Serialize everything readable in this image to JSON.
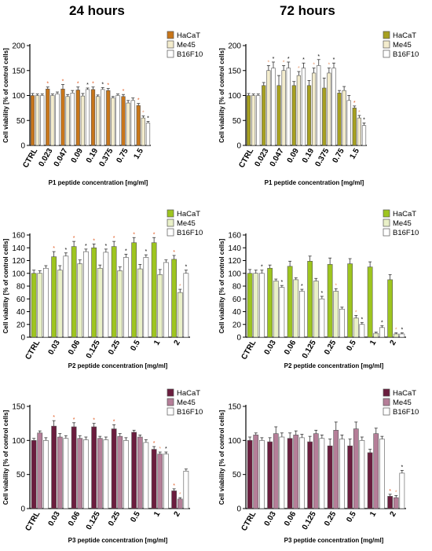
{
  "column_titles": {
    "left": "24 hours",
    "right": "72 hours"
  },
  "chart_data": [
    {
      "type": "bar",
      "panel": "P1 24 hours",
      "ylabel": "Cell viability [% of control cells]",
      "xlabel": "P1 peptide concentration [mg/ml]",
      "ylim": [
        0,
        200
      ],
      "yticks": [
        0,
        50,
        100,
        150,
        200
      ],
      "categories": [
        "CTRL",
        "0.023",
        "0.047",
        "0.09",
        "0.19",
        "0.375",
        "0.75",
        "1.5"
      ],
      "legend_position": "top-right",
      "series": [
        {
          "name": "HaCaT",
          "color": "#c8761a",
          "values": [
            100,
            113,
            113,
            111,
            112,
            110,
            98,
            80
          ],
          "err": [
            4,
            4,
            9,
            6,
            5,
            4,
            4,
            4
          ],
          "stars": [
            "",
            "*",
            "*",
            "*",
            "*",
            "*",
            "*",
            "*"
          ]
        },
        {
          "name": "Me45",
          "color": "#f3eccd",
          "values": [
            100,
            100,
            98,
            99,
            98,
            95,
            85,
            55
          ],
          "err": [
            3,
            3,
            4,
            5,
            3,
            3,
            5,
            4
          ],
          "stars": [
            "",
            "",
            "",
            "",
            "",
            "",
            "",
            "*"
          ]
        },
        {
          "name": "B16F10",
          "color": "#ffffff",
          "values": [
            100,
            103,
            105,
            112,
            112,
            100,
            90,
            45
          ],
          "err": [
            3,
            4,
            5,
            3,
            4,
            3,
            5,
            3
          ],
          "stars": [
            "",
            "",
            "",
            "*",
            "*",
            "",
            "",
            "*"
          ]
        }
      ]
    },
    {
      "type": "bar",
      "panel": "P1 72 hours",
      "ylabel": "Cell viability [% of control cells]",
      "xlabel": "P1 peptide concentration [mg/ml]",
      "ylim": [
        0,
        200
      ],
      "yticks": [
        0,
        50,
        100,
        150,
        200
      ],
      "categories": [
        "CTRL",
        "0.023",
        "0.047",
        "0.09",
        "0.19",
        "0.375",
        "0.75",
        "1.5"
      ],
      "legend_position": "top-right",
      "series": [
        {
          "name": "HaCaT",
          "color": "#a7a020",
          "values": [
            100,
            120,
            120,
            120,
            120,
            115,
            105,
            75
          ],
          "err": [
            4,
            6,
            20,
            8,
            10,
            20,
            5,
            4
          ],
          "stars": [
            "",
            "",
            "",
            "",
            "",
            "",
            "",
            "*"
          ]
        },
        {
          "name": "Me45",
          "color": "#f3eccd",
          "values": [
            100,
            150,
            150,
            140,
            145,
            145,
            110,
            55
          ],
          "err": [
            3,
            10,
            10,
            8,
            10,
            10,
            8,
            5
          ],
          "stars": [
            "",
            "*",
            "*",
            "*",
            "*",
            "*",
            "",
            "*"
          ]
        },
        {
          "name": "B16F10",
          "color": "#ffffff",
          "values": [
            100,
            155,
            155,
            155,
            160,
            155,
            90,
            40
          ],
          "err": [
            3,
            12,
            12,
            10,
            12,
            10,
            10,
            5
          ],
          "stars": [
            "",
            "*",
            "*",
            "*",
            "*",
            "*",
            "",
            "*"
          ]
        }
      ]
    },
    {
      "type": "bar",
      "panel": "P2 24 hours",
      "ylabel": "Cell viability [% of control cells]",
      "xlabel": "P2 peptide concentration [mg/ml]",
      "ylim": [
        0,
        160
      ],
      "yticks": [
        0,
        20,
        40,
        60,
        80,
        100,
        120,
        140,
        160
      ],
      "categories": [
        "CTRL",
        "0.03",
        "0.06",
        "0.125",
        "0.25",
        "0.5",
        "1",
        "2"
      ],
      "legend_position": "top-right",
      "series": [
        {
          "name": "HaCaT",
          "color": "#9ec51f",
          "values": [
            100,
            126,
            142,
            140,
            142,
            148,
            148,
            122
          ],
          "err": [
            5,
            8,
            8,
            6,
            8,
            8,
            8,
            6
          ],
          "stars": [
            "",
            "*",
            "*",
            "*",
            "*",
            "*",
            "*",
            "*"
          ]
        },
        {
          "name": "Me45",
          "color": "#e9f0c8",
          "values": [
            100,
            105,
            115,
            108,
            104,
            107,
            98,
            70
          ],
          "err": [
            4,
            7,
            6,
            5,
            6,
            7,
            8,
            5
          ],
          "stars": [
            "",
            "",
            "",
            "",
            "",
            "",
            "",
            "*"
          ]
        },
        {
          "name": "B16F10",
          "color": "#ffffff",
          "values": [
            108,
            127,
            134,
            133,
            125,
            125,
            117,
            100
          ],
          "err": [
            4,
            5,
            4,
            5,
            5,
            4,
            4,
            5
          ],
          "stars": [
            "",
            "*",
            "*",
            "*",
            "*",
            "*",
            "",
            "*"
          ]
        }
      ]
    },
    {
      "type": "bar",
      "panel": "P2 72 hours",
      "ylabel": "Cell viability [% of control cells]",
      "xlabel": "P2 peptide concentration [mg/ml]",
      "ylim": [
        0,
        160
      ],
      "yticks": [
        0,
        20,
        40,
        60,
        80,
        100,
        120,
        140,
        160
      ],
      "categories": [
        "CTRL",
        "0.03",
        "0.06",
        "0.125",
        "0.25",
        "0.5",
        "1",
        "2"
      ],
      "legend_position": "top-right",
      "series": [
        {
          "name": "HaCaT",
          "color": "#9ec51f",
          "values": [
            100,
            108,
            111,
            119,
            114,
            115,
            110,
            90
          ],
          "err": [
            6,
            5,
            8,
            8,
            10,
            8,
            8,
            8
          ],
          "stars": [
            "",
            "",
            "",
            "",
            "",
            "",
            "",
            ""
          ]
        },
        {
          "name": "Me45",
          "color": "#e9f0c8",
          "values": [
            100,
            88,
            90,
            88,
            72,
            30,
            6,
            5
          ],
          "err": [
            5,
            3,
            3,
            4,
            4,
            4,
            2,
            2
          ],
          "stars": [
            "",
            "",
            "",
            "",
            "*",
            "*",
            "",
            "*"
          ]
        },
        {
          "name": "B16F10",
          "color": "#ffffff",
          "values": [
            100,
            78,
            72,
            60,
            44,
            20,
            15,
            5
          ],
          "err": [
            5,
            3,
            3,
            4,
            3,
            3,
            3,
            2
          ],
          "stars": [
            "*",
            "*",
            "*",
            "*",
            "",
            "*",
            "*",
            "*"
          ]
        }
      ]
    },
    {
      "type": "bar",
      "panel": "P3 24 hours",
      "ylabel": "Cell viability [% of control cells]",
      "xlabel": "P3 peptide concentration [mg/ml]",
      "ylim": [
        0,
        150
      ],
      "yticks": [
        0,
        50,
        100,
        150
      ],
      "categories": [
        "CTRL",
        "0.03",
        "0.06",
        "0.125",
        "0.25",
        "0.5",
        "1",
        "2"
      ],
      "legend_position": "top-right",
      "series": [
        {
          "name": "HaCaT",
          "color": "#6b1d3e",
          "values": [
            100,
            121,
            120,
            120,
            117,
            112,
            87,
            26
          ],
          "err": [
            3,
            8,
            6,
            5,
            6,
            3,
            4,
            3
          ],
          "stars": [
            "",
            "*",
            "*",
            "*",
            "*",
            "",
            "*",
            "*"
          ]
        },
        {
          "name": "Me45",
          "color": "#b57e98",
          "values": [
            111,
            105,
            103,
            103,
            106,
            105,
            80,
            14
          ],
          "err": [
            3,
            5,
            4,
            3,
            4,
            3,
            3,
            2
          ],
          "stars": [
            "",
            "",
            "",
            "",
            "",
            "",
            "*",
            "*"
          ]
        },
        {
          "name": "B16F10",
          "color": "#ffffff",
          "values": [
            100,
            103,
            101,
            101,
            100,
            97,
            80,
            55
          ],
          "err": [
            4,
            4,
            4,
            4,
            4,
            4,
            3,
            3
          ],
          "stars": [
            "",
            "",
            "",
            "",
            "",
            "",
            "*",
            ""
          ]
        }
      ]
    },
    {
      "type": "bar",
      "panel": "P3 72 hours",
      "ylabel": "Cell viability [% of control cells]",
      "xlabel": "P3 peptide concentration [mg/ml]",
      "ylim": [
        0,
        150
      ],
      "yticks": [
        0,
        50,
        100,
        150
      ],
      "categories": [
        "CTRL",
        "0.03",
        "0.06",
        "0.125",
        "0.25",
        "0.5",
        "1",
        "2"
      ],
      "legend_position": "top-right",
      "series": [
        {
          "name": "HaCaT",
          "color": "#6b1d3e",
          "values": [
            100,
            98,
            103,
            98,
            92,
            92,
            82,
            18
          ],
          "err": [
            5,
            6,
            8,
            8,
            10,
            10,
            5,
            3
          ],
          "stars": [
            "",
            "",
            "",
            "",
            "",
            "",
            "",
            "*"
          ]
        },
        {
          "name": "Me45",
          "color": "#b57e98",
          "values": [
            108,
            110,
            108,
            110,
            115,
            117,
            110,
            16
          ],
          "err": [
            3,
            10,
            6,
            5,
            12,
            10,
            8,
            3
          ],
          "stars": [
            "",
            "",
            "",
            "",
            "",
            "",
            "",
            "*"
          ]
        },
        {
          "name": "B16F10",
          "color": "#ffffff",
          "values": [
            100,
            105,
            104,
            103,
            102,
            100,
            102,
            52
          ],
          "err": [
            4,
            6,
            5,
            5,
            6,
            5,
            4,
            4
          ],
          "stars": [
            "",
            "",
            "",
            "",
            "",
            "",
            "",
            "*"
          ]
        }
      ]
    }
  ]
}
